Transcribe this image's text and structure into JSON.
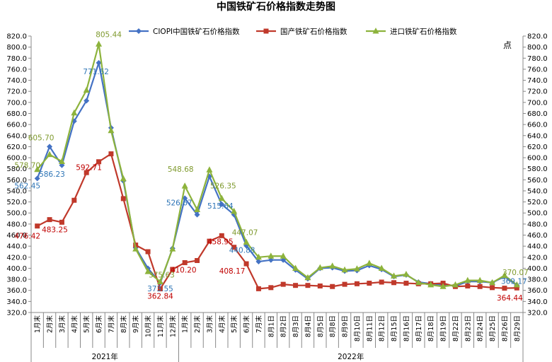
{
  "chart_data": {
    "type": "line",
    "title": "中国铁矿石价格指数走势图",
    "y2_unit": "点",
    "ylim": [
      320,
      820
    ],
    "ystep": 20,
    "grid": false,
    "legend_position": "top",
    "categories": [
      "1月末",
      "2月末",
      "3月末",
      "4月末",
      "5月末",
      "6月末",
      "7月末",
      "8月末",
      "9月末",
      "10月末",
      "11月末",
      "12月末",
      "1月末",
      "2月末",
      "3月末",
      "4月末",
      "5月末",
      "6月末",
      "7月末",
      "8月1日",
      "8月2日",
      "8月3日",
      "8月4日",
      "8月5日",
      "8月8日",
      "8月9日",
      "8月10日",
      "8月11日",
      "8月12日",
      "8月15日",
      "8月16日",
      "8月17日",
      "8月18日",
      "8月19日",
      "8月22日",
      "8月23日",
      "8月24日",
      "8月25日",
      "8月26日",
      "8月29日"
    ],
    "years": [
      {
        "label": "2021年",
        "start": 0,
        "end": 11
      },
      {
        "label": "2022年",
        "start": 12,
        "end": 39
      }
    ],
    "series": [
      {
        "name": "CIOPI中国铁矿石价格指数",
        "color": "#4472c4",
        "marker": "diamond",
        "values": [
          562.45,
          620,
          586.23,
          666,
          703,
          771.62,
          654,
          558,
          437,
          400,
          373.55,
          436,
          526.67,
          497,
          566,
          515.64,
          497,
          440.88,
          412,
          415,
          415,
          397,
          381,
          400,
          401,
          395,
          396,
          405,
          398,
          385,
          388,
          375,
          372,
          370,
          368,
          376,
          376,
          374,
          385,
          369.17
        ]
      },
      {
        "name": "国产铁矿石价格指数",
        "color": "#c0392b",
        "marker": "square",
        "values": [
          476.42,
          488,
          483.25,
          523,
          573,
          592.71,
          607,
          526,
          442,
          430,
          362.84,
          398,
          410.2,
          414,
          449,
          458.95,
          438,
          408.17,
          363,
          365,
          371,
          369,
          369,
          368,
          367,
          371,
          372,
          373,
          375,
          374,
          373,
          372,
          372,
          373,
          367,
          368,
          367,
          365,
          364,
          364.44
        ]
      },
      {
        "name": "进口铁矿石价格指数",
        "color": "#8db33c",
        "marker": "triangle",
        "values": [
          578.7,
          605.7,
          593,
          681,
          722,
          805.44,
          649,
          562,
          435,
          394,
          375.63,
          435,
          548.68,
          506,
          578,
          526.35,
          503,
          447.07,
          420,
          422,
          422,
          400,
          383,
          401,
          404,
          397,
          399,
          409,
          400,
          386,
          389,
          374,
          370,
          367,
          370,
          378,
          378,
          374,
          387,
          370.07
        ]
      }
    ],
    "data_labels": [
      {
        "series": 2,
        "index": 0,
        "text": "578.70"
      },
      {
        "series": 2,
        "index": 1,
        "text": "605.70"
      },
      {
        "series": 0,
        "index": 0,
        "text": "562.45"
      },
      {
        "series": 0,
        "index": 2,
        "text": "586.23"
      },
      {
        "series": 2,
        "index": 5,
        "text": "805.44"
      },
      {
        "series": 0,
        "index": 5,
        "text": "771.62"
      },
      {
        "series": 1,
        "index": 0,
        "text": "476.42"
      },
      {
        "series": 1,
        "index": 2,
        "text": "483.25"
      },
      {
        "series": 1,
        "index": 5,
        "text": "592.71"
      },
      {
        "series": 2,
        "index": 10,
        "text": "375.63"
      },
      {
        "series": 0,
        "index": 10,
        "text": "373.55"
      },
      {
        "series": 1,
        "index": 10,
        "text": "362.84"
      },
      {
        "series": 2,
        "index": 12,
        "text": "548.68"
      },
      {
        "series": 0,
        "index": 12,
        "text": "526.67"
      },
      {
        "series": 1,
        "index": 12,
        "text": "410.20"
      },
      {
        "series": 2,
        "index": 15,
        "text": "526.35"
      },
      {
        "series": 0,
        "index": 15,
        "text": "515.64"
      },
      {
        "series": 1,
        "index": 15,
        "text": "458.95"
      },
      {
        "series": 2,
        "index": 17,
        "text": "447.07"
      },
      {
        "series": 0,
        "index": 17,
        "text": "440.88"
      },
      {
        "series": 1,
        "index": 17,
        "text": "408.17"
      },
      {
        "series": 2,
        "index": 39,
        "text": "370.07"
      },
      {
        "series": 0,
        "index": 39,
        "text": "369.17"
      },
      {
        "series": 1,
        "index": 39,
        "text": "364.44"
      }
    ]
  }
}
